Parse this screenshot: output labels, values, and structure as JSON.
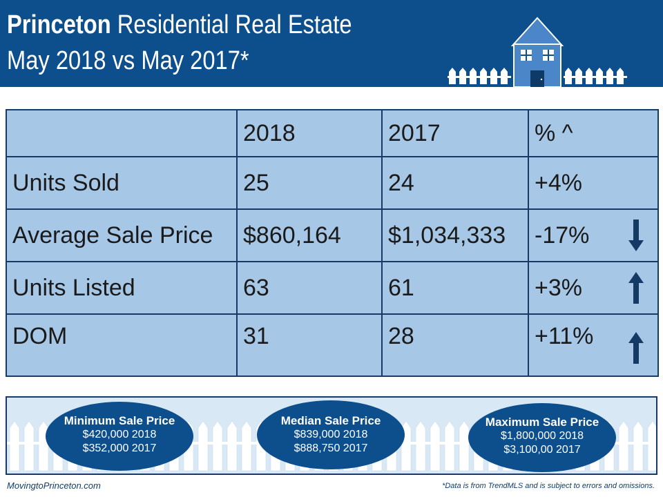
{
  "header": {
    "title_bold": "Princeton",
    "title_rest": " Residential Real Estate",
    "subtitle": "May 2018 vs May 2017*"
  },
  "table": {
    "columns": [
      "",
      "2018",
      "2017",
      "% ^"
    ],
    "rows": [
      {
        "label": "Units Sold",
        "y2018": "25",
        "y2017": "24",
        "pct": "+4%",
        "trend": "none"
      },
      {
        "label": "Average Sale Price",
        "y2018": "$860,164",
        "y2017": "$1,034,333",
        "pct": "-17%",
        "trend": "down"
      },
      {
        "label": "Units Listed",
        "y2018": "63",
        "y2017": "61",
        "pct": "+3%",
        "trend": "up"
      },
      {
        "label": "DOM",
        "y2018": "31",
        "y2017": "28",
        "pct": "+11%",
        "trend": "up"
      }
    ]
  },
  "summary": [
    {
      "title": "Minimum Sale Price",
      "line1": "$420,000 2018",
      "line2": "$352,000 2017"
    },
    {
      "title": "Median Sale Price",
      "line1": "$839,000  2018",
      "line2": "$888,750  2017"
    },
    {
      "title": "Maximum Sale Price",
      "line1": "$1,800,000  2018",
      "line2": "$3,100,00  2017"
    }
  ],
  "footer": {
    "site": "MovingtoPrinceton.com",
    "disclaimer": "*Data is from TrendMLS and is subject to errors and omissions."
  },
  "colors": {
    "header_bg": "#0d4f8c",
    "table_bg": "#a7c7e7",
    "border": "#153a66",
    "house": "#4a86c8",
    "panel_bg": "#d9e8f5"
  }
}
